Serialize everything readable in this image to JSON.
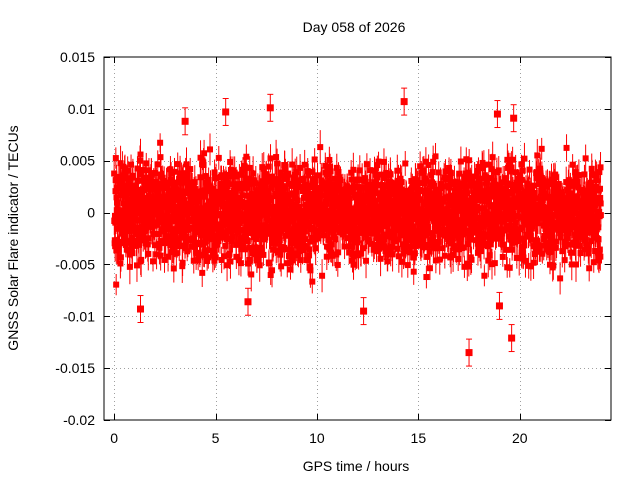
{
  "chart_data": {
    "type": "scatter",
    "title": "Day 058 of 2026",
    "xlabel": "GPS time / hours",
    "ylabel": "GNSS Solar Flare indicator / TECUs",
    "xlim": [
      -0.5,
      24.5
    ],
    "ylim": [
      -0.02,
      0.015
    ],
    "xticks": [
      0,
      5,
      10,
      15,
      20
    ],
    "xtick_labels": [
      "0",
      "5",
      "10",
      "15",
      "20"
    ],
    "yticks": [
      -0.02,
      -0.015,
      -0.01,
      -0.005,
      0,
      0.005,
      0.01,
      0.015
    ],
    "ytick_labels": [
      "-0.02",
      "-0.015",
      "-0.01",
      "-0.005",
      "0",
      "0.005",
      "0.01",
      "0.015"
    ],
    "grid": true,
    "marker_color": "#ff0000",
    "error_bars": true,
    "series": [
      {
        "name": "GNSS Solar Flare indicator",
        "note": "dense noise band, roughly ±0.006 TECU around zero, one sample every ~30 s from 0 to 24 h (approx. 2880 points); only notable outliers listed",
        "band": {
          "x_start": 0,
          "x_end": 24,
          "center": 0,
          "spread": 0.0055,
          "error": 0.0013
        },
        "outliers": [
          {
            "x": 1.3,
            "y": -0.0093
          },
          {
            "x": 3.5,
            "y": 0.0088
          },
          {
            "x": 5.5,
            "y": 0.0097
          },
          {
            "x": 6.6,
            "y": -0.0086
          },
          {
            "x": 7.7,
            "y": 0.0101
          },
          {
            "x": 12.3,
            "y": -0.0095
          },
          {
            "x": 14.3,
            "y": 0.0107
          },
          {
            "x": 17.5,
            "y": -0.0135
          },
          {
            "x": 18.9,
            "y": 0.0095
          },
          {
            "x": 19.0,
            "y": -0.009
          },
          {
            "x": 19.6,
            "y": -0.0121
          },
          {
            "x": 19.7,
            "y": 0.0091
          }
        ]
      }
    ]
  }
}
